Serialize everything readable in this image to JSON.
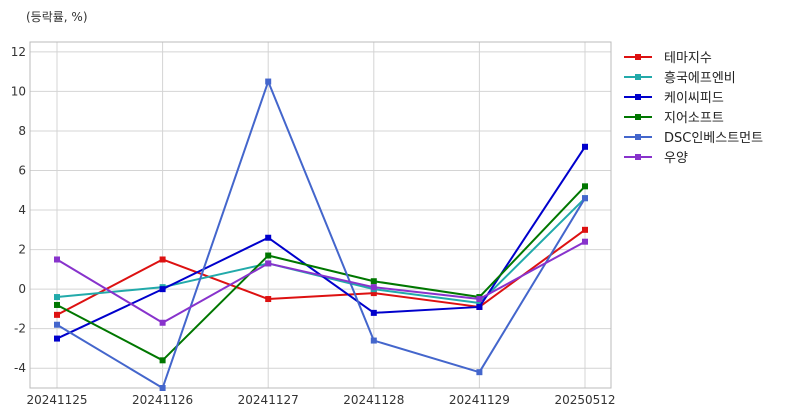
{
  "chart_data": {
    "type": "line",
    "unit_label": "(등락률, %)",
    "title": "",
    "xlabel": "",
    "ylabel": "",
    "categories": [
      "20241125",
      "20241126",
      "20241127",
      "20241128",
      "20241129",
      "20250512"
    ],
    "ylim": [
      -5,
      12.5
    ],
    "yticks": [
      -4,
      -2,
      0,
      2,
      4,
      6,
      8,
      10,
      12
    ],
    "grid": true,
    "legend_position": "right",
    "series": [
      {
        "name": "테마지수",
        "color": "#dd1111",
        "values": [
          -1.3,
          1.5,
          -0.5,
          -0.2,
          -0.9,
          3.0
        ]
      },
      {
        "name": "흥국에프엔비",
        "color": "#22aaaa",
        "values": [
          -0.4,
          0.1,
          1.3,
          0.0,
          -0.7,
          4.6
        ]
      },
      {
        "name": "케이씨피드",
        "color": "#0000cc",
        "values": [
          -2.5,
          0.0,
          2.6,
          -1.2,
          -0.9,
          7.2
        ]
      },
      {
        "name": "지어소프트",
        "color": "#007700",
        "values": [
          -0.8,
          -3.6,
          1.7,
          0.4,
          -0.4,
          5.2
        ]
      },
      {
        "name": "DSC인베스트먼트",
        "color": "#4466cc",
        "values": [
          -1.8,
          -5.0,
          10.5,
          -2.6,
          -4.2,
          4.6
        ]
      },
      {
        "name": "우양",
        "color": "#8833cc",
        "values": [
          1.5,
          -1.7,
          1.3,
          0.1,
          -0.5,
          2.4
        ]
      }
    ]
  }
}
